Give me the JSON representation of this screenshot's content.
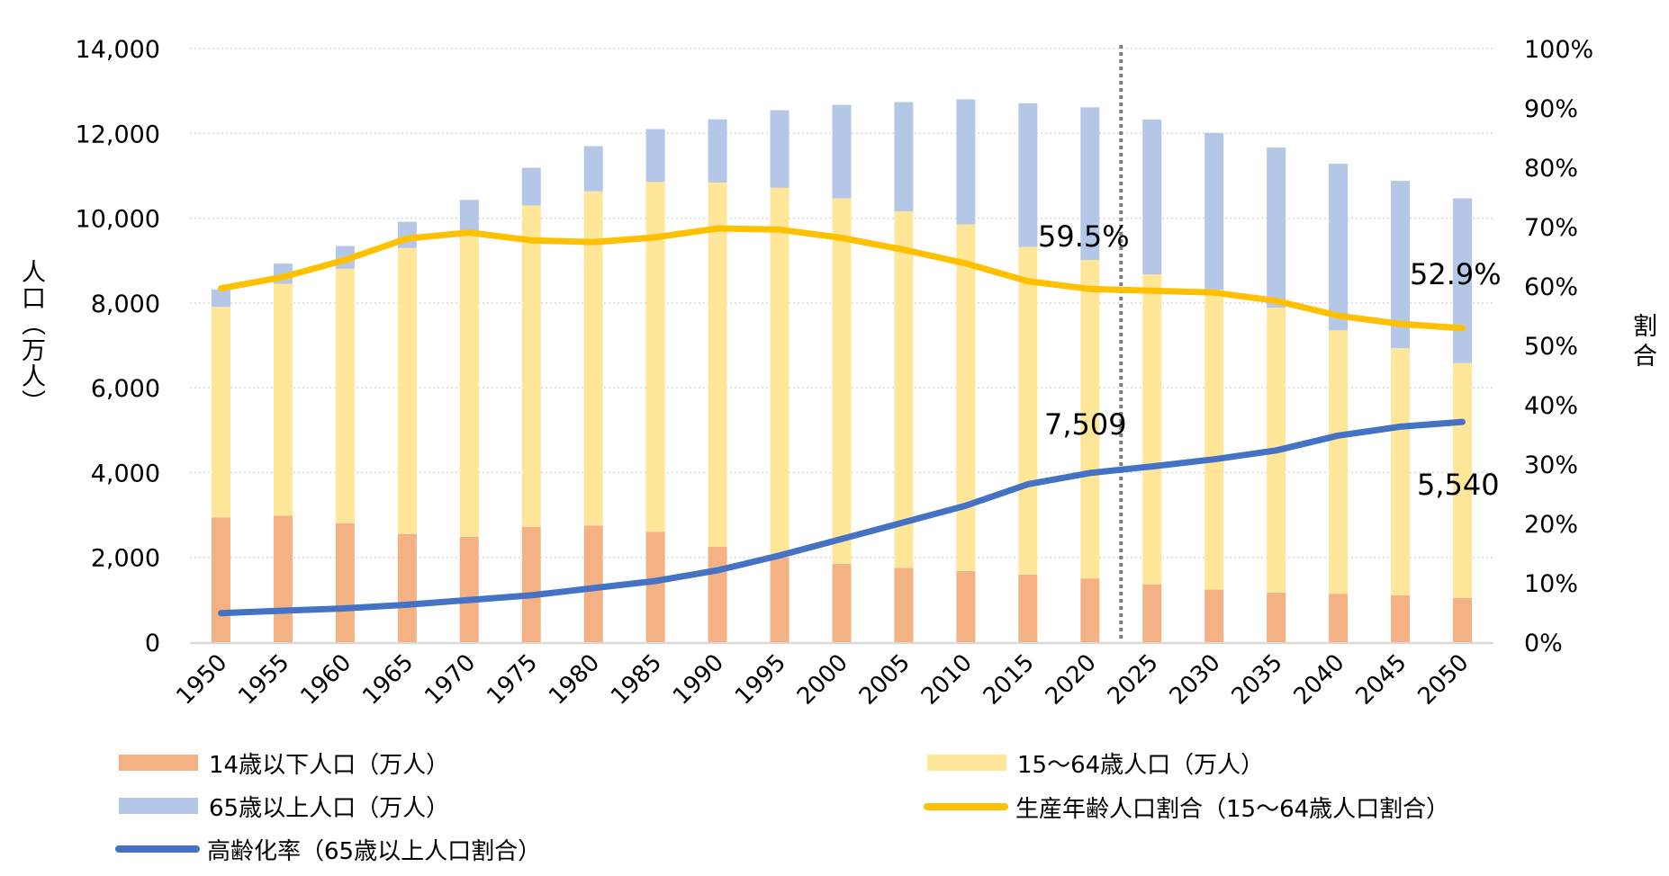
{
  "chart_data": {
    "type": "bar+line",
    "title": "",
    "categories": [
      "1950",
      "1955",
      "1960",
      "1965",
      "1970",
      "1975",
      "1980",
      "1985",
      "1990",
      "1995",
      "2000",
      "2005",
      "2010",
      "2015",
      "2020",
      "2025",
      "2030",
      "2035",
      "2040",
      "2045",
      "2050"
    ],
    "ylabel": "人口（万人）",
    "y2label": "割合",
    "ylim": [
      0,
      14000
    ],
    "y2lim": [
      0,
      100
    ],
    "yticks": [
      "0",
      "2,000",
      "4,000",
      "6,000",
      "8,000",
      "10,000",
      "12,000",
      "14,000"
    ],
    "y2ticks": [
      "0%",
      "10%",
      "20%",
      "30%",
      "40%",
      "50%",
      "60%",
      "70%",
      "80%",
      "90%",
      "100%"
    ],
    "grid": true,
    "stacked": true,
    "series": [
      {
        "name": "14歳以下人口（万人）",
        "type": "bar",
        "axis": "left",
        "color": "#F4B183",
        "values": [
          2943,
          2980,
          2807,
          2553,
          2482,
          2720,
          2751,
          2604,
          2249,
          2001,
          1847,
          1752,
          1680,
          1595,
          1503,
          1363,
          1240,
          1169,
          1142,
          1103,
          1041
        ]
      },
      {
        "name": "15～64歳人口（万人）",
        "type": "bar",
        "axis": "left",
        "color": "#FFE699",
        "values": [
          4966,
          5473,
          6000,
          6744,
          7212,
          7581,
          7883,
          8251,
          8590,
          8716,
          8622,
          8409,
          8174,
          7728,
          7509,
          7310,
          7076,
          6722,
          6213,
          5832,
          5540
        ]
      },
      {
        "name": "65歳以上人口（万人）",
        "type": "bar",
        "axis": "left",
        "color": "#B4C7E7",
        "values": [
          411,
          475,
          535,
          618,
          739,
          887,
          1065,
          1247,
          1493,
          1828,
          2204,
          2576,
          2948,
          3387,
          3603,
          3653,
          3696,
          3773,
          3928,
          3945,
          3888
        ]
      },
      {
        "name": "生産年齢人口割合（15～64歳人口割合）",
        "type": "line",
        "axis": "right",
        "color": "#FFC000",
        "values": [
          59.6,
          61.5,
          64.4,
          68.0,
          69.0,
          67.7,
          67.4,
          68.2,
          69.7,
          69.5,
          68.1,
          66.1,
          63.8,
          60.8,
          59.5,
          59.2,
          58.9,
          57.5,
          55.0,
          53.6,
          52.9
        ]
      },
      {
        "name": "高齢化率（65歳以上人口割合）",
        "type": "line",
        "axis": "right",
        "color": "#4472C4",
        "values": [
          4.9,
          5.3,
          5.7,
          6.3,
          7.1,
          7.9,
          9.1,
          10.3,
          12.1,
          14.6,
          17.4,
          20.2,
          23.0,
          26.6,
          28.5,
          29.6,
          30.8,
          32.3,
          34.8,
          36.3,
          37.1
        ]
      }
    ],
    "annotations": [
      {
        "text": "59.5%",
        "category": "2020",
        "series": "生産年齢人口割合（15～64歳人口割合）"
      },
      {
        "text": "7,509",
        "category": "2020",
        "series": "15～64歳人口（万人）"
      },
      {
        "text": "52.9%",
        "category": "2050",
        "series": "生産年齢人口割合（15～64歳人口割合）"
      },
      {
        "text": "5,540",
        "category": "2050",
        "series": "15～64歳人口（万人）"
      }
    ],
    "divider": {
      "between": [
        "2020",
        "2025"
      ],
      "style": "dotted",
      "color": "#7F7F7F"
    },
    "legend_position": "bottom"
  },
  "legend": [
    {
      "label": "14歳以下人口（万人）",
      "kind": "swatch",
      "color": "#F4B183"
    },
    {
      "label": "15～64歳人口（万人）",
      "kind": "swatch",
      "color": "#FFE699"
    },
    {
      "label": "65歳以上人口（万人）",
      "kind": "swatch",
      "color": "#B4C7E7"
    },
    {
      "label": "生産年齢人口割合（15～64歳人口割合）",
      "kind": "line",
      "color": "#FFC000"
    },
    {
      "label": "高齢化率（65歳以上人口割合）",
      "kind": "line",
      "color": "#4472C4"
    }
  ]
}
